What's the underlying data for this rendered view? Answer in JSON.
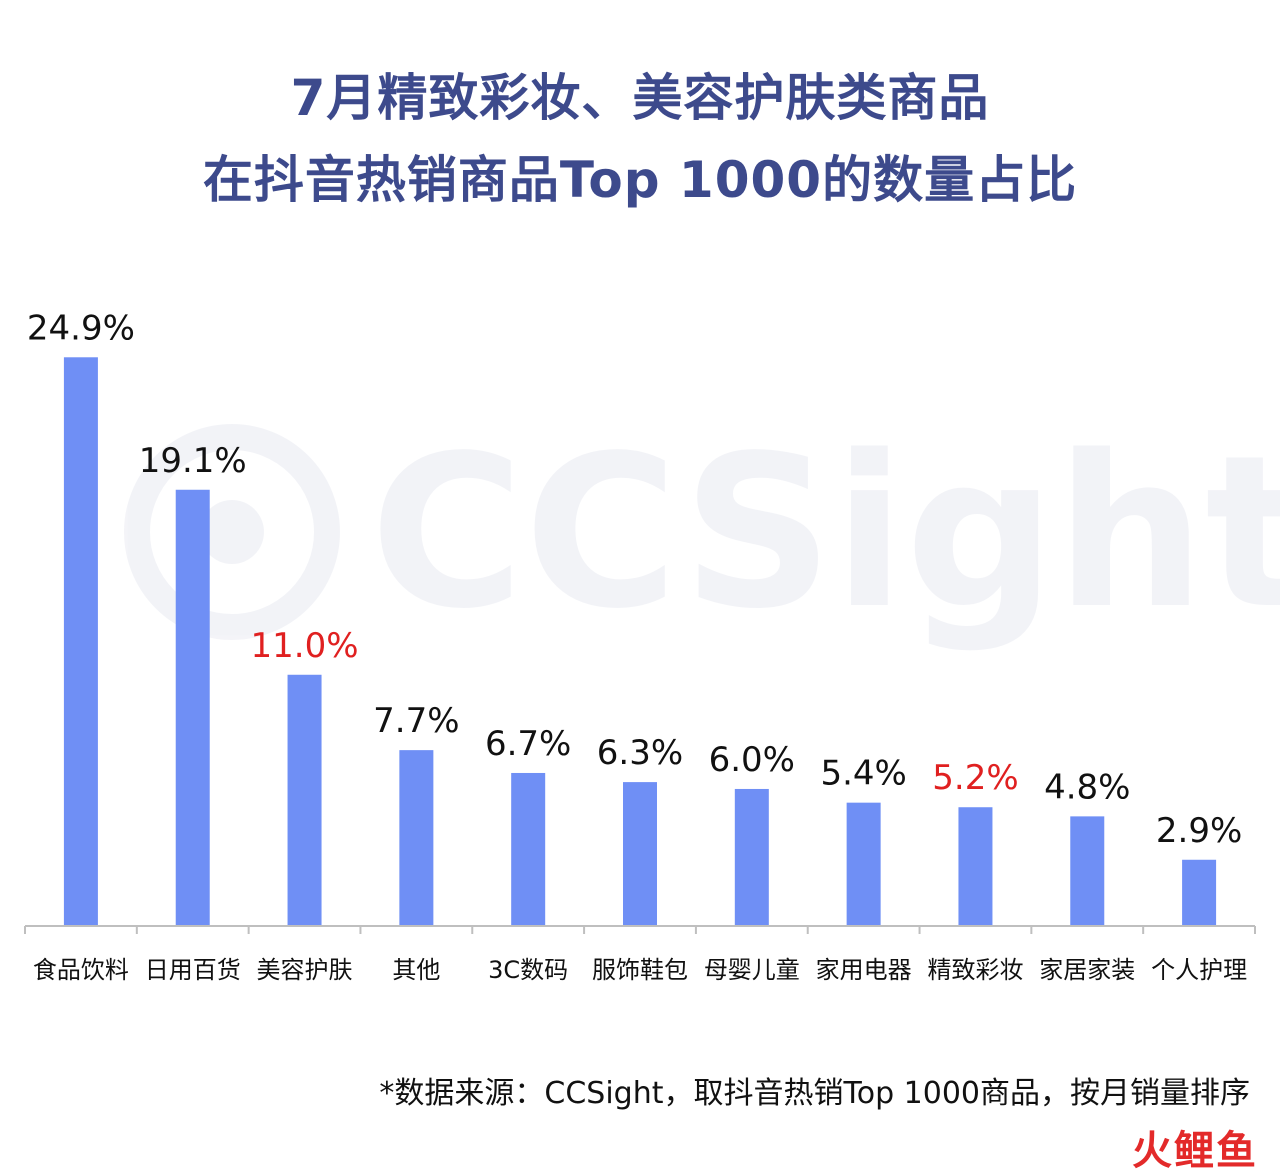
{
  "chart_data": {
    "type": "bar",
    "title_lines": [
      "7月精致彩妆、美容护肤类商品",
      "在抖音热销商品Top 1000的数量占比"
    ],
    "categories": [
      "食品饮料",
      "日用百货",
      "美容护肤",
      "其他",
      "3C数码",
      "服饰鞋包",
      "母婴儿童",
      "家用电器",
      "精致彩妆",
      "家居家装",
      "个人护理"
    ],
    "values": [
      24.9,
      19.1,
      11.0,
      7.7,
      6.7,
      6.3,
      6.0,
      5.4,
      5.2,
      4.8,
      2.9
    ],
    "value_labels": [
      "24.9%",
      "19.1%",
      "11.0%",
      "7.7%",
      "6.7%",
      "6.3%",
      "6.0%",
      "5.4%",
      "5.2%",
      "4.8%",
      "2.9%"
    ],
    "highlighted_categories": [
      "美容护肤",
      "精致彩妆"
    ],
    "ylim": [
      0,
      25
    ],
    "grid": false,
    "legend": "none",
    "bar_color": "#6f8ff5",
    "label_color": "#111111",
    "highlight_label_color": "#e02020"
  },
  "watermark": "CCSight",
  "source_note": "*数据来源：CCSight，取抖音热销Top 1000商品，按月销量排序",
  "corner_logo": "火鲤鱼"
}
